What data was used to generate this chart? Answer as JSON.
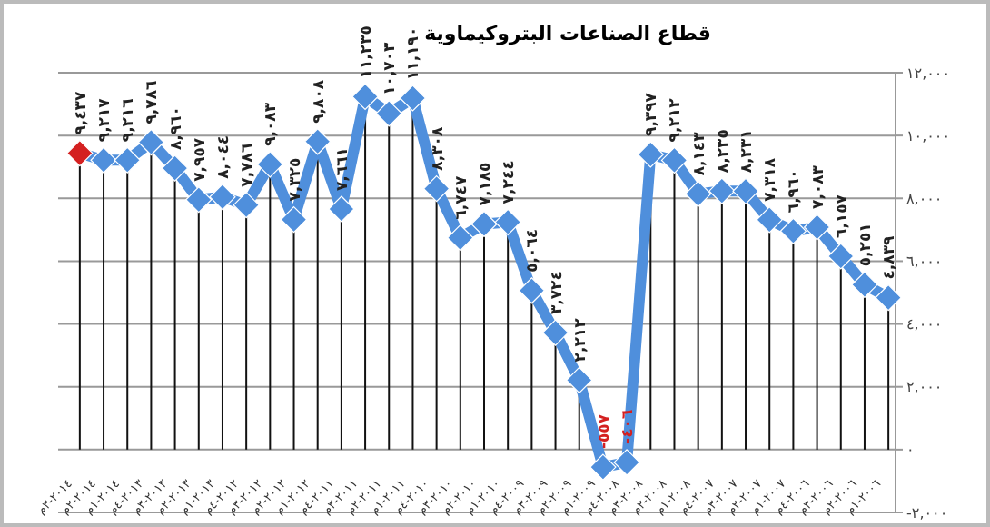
{
  "chart_data": {
    "type": "line",
    "title": "قطاع الصناعات البتروكيماوية",
    "categories": [
      "٢٠١٤-٣م",
      "٢٠١٤-٢م",
      "٢٠١٤-١م",
      "٢٠١٣-٤م",
      "٢٠١٣-٣م",
      "٢٠١٣-٢م",
      "٢٠١٣-١م",
      "٢٠١٢-٤م",
      "٢٠١٢-٣م",
      "٢٠١٢-٢م",
      "٢٠١٢-١م",
      "٢٠١١-٤م",
      "٢٠١١-٣م",
      "٢٠١١-٢م",
      "٢٠١١-١م",
      "٢٠١٠-٤م",
      "٢٠١٠-٣م",
      "٢٠١٠-٢م",
      "٢٠١٠-١م",
      "٢٠٠٩-٤م",
      "٢٠٠٩-٣م",
      "٢٠٠٩-٢م",
      "٢٠٠٩-١م",
      "٢٠٠٨-٤م",
      "٢٠٠٨-٣م",
      "٢٠٠٨-٢م",
      "٢٠٠٨-١م",
      "٢٠٠٧-٤م",
      "٢٠٠٧-٣م",
      "٢٠٠٧-٢م",
      "٢٠٠٧-١م",
      "٢٠٠٦-٤م",
      "٢٠٠٦-٣م",
      "٢٠٠٦-٢م",
      "٢٠٠٦-١م"
    ],
    "series": [
      {
        "color": "#4f8fdc",
        "colors": [
          "#d42020",
          "#4f8fdc",
          "#4f8fdc",
          "#4f8fdc",
          "#4f8fdc",
          "#4f8fdc",
          "#4f8fdc",
          "#4f8fdc",
          "#4f8fdc",
          "#4f8fdc",
          "#4f8fdc",
          "#4f8fdc",
          "#4f8fdc",
          "#4f8fdc",
          "#4f8fdc",
          "#4f8fdc",
          "#4f8fdc",
          "#4f8fdc",
          "#4f8fdc",
          "#4f8fdc",
          "#4f8fdc",
          "#4f8fdc",
          "#4f8fdc",
          "#4f8fdc",
          "#4f8fdc",
          "#4f8fdc",
          "#4f8fdc",
          "#4f8fdc",
          "#4f8fdc",
          "#4f8fdc",
          "#4f8fdc",
          "#4f8fdc",
          "#4f8fdc",
          "#4f8fdc",
          "#4f8fdc"
        ],
        "values": [
          9437,
          9217,
          9216,
          9786,
          8960,
          7957,
          8044,
          7786,
          9083,
          7325,
          9808,
          7661,
          11235,
          10703,
          11190,
          8308,
          6747,
          7185,
          7244,
          5064,
          3724,
          2212,
          -557,
          -406,
          9397,
          9212,
          8143,
          8235,
          8231,
          7318,
          6960,
          7083,
          6157,
          5251,
          4839
        ],
        "value_labels": [
          "٩,٤٣٧",
          "٩,٢١٧",
          "٩,٢١٦",
          "٩,٧٨٦",
          "٨,٩٦٠",
          "٧,٩٥٧",
          "٨,٠٤٤",
          "٧,٧٨٦",
          "٩,٠٨٣",
          "٧,٣٢٥",
          "٩,٨٠٨",
          "٧,٦٦١",
          "١١,٢٣٥",
          "١٠,٧٠٣",
          "١١,١٩٠",
          "٨,٣٠٨",
          "٦,٧٤٧",
          "٧,١٨٥",
          "٧,٢٤٤",
          "٥,٠٦٤",
          "٣,٧٢٤",
          "٢,٢١٢",
          "-٥٥٧",
          "-٤٠٦",
          "٩,٣٩٧",
          "٩,٢١٢",
          "٨,١٤٣",
          "٨,٢٣٥",
          "٨,٢٣١",
          "٧,٣١٨",
          "٦,٩٦٠",
          "٧,٠٨٣",
          "٦,١٥٧",
          "٥,٢٥١",
          "٤,٨٣٩"
        ]
      }
    ],
    "ylim": [
      -2000,
      12000
    ],
    "yticks": [
      {
        "value": -2000,
        "label": "-٢,٠٠٠"
      },
      {
        "value": 0,
        "label": "٠"
      },
      {
        "value": 2000,
        "label": "٢,٠٠٠"
      },
      {
        "value": 4000,
        "label": "٤,٠٠٠"
      },
      {
        "value": 6000,
        "label": "٦,٠٠٠"
      },
      {
        "value": 8000,
        "label": "٨,٠٠٠"
      },
      {
        "value": 10000,
        "label": "١٠,٠٠٠"
      },
      {
        "value": 12000,
        "label": "١٢,٠٠٠"
      }
    ],
    "grid": true,
    "marker": "diamond",
    "line_style": "solid"
  }
}
